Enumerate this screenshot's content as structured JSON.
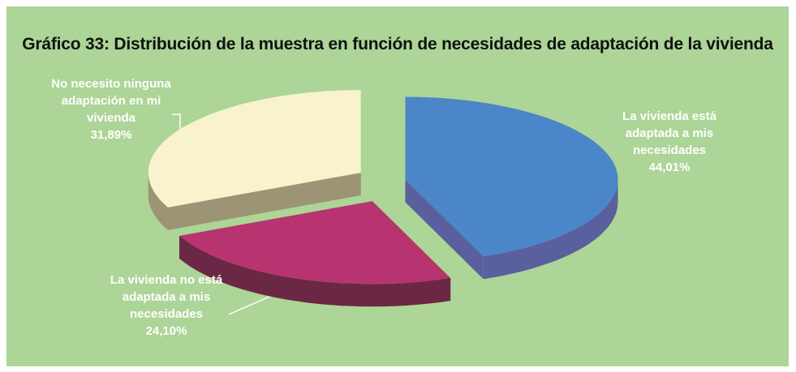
{
  "chart_data": {
    "type": "pie",
    "title": "Gráfico 33: Distribución de la muestra en función de necesidades de adaptación de la vivienda",
    "categories": [
      "La vivienda está adaptada a mis necesidades",
      "La vivienda no está adaptada a mis necesidades",
      "No necesito ninguna adaptación en mi vivienda"
    ],
    "values": [
      44.01,
      24.1,
      31.89
    ],
    "value_labels": [
      "44,01%",
      "24,10%",
      "31,89%"
    ],
    "colors": [
      "#4a86c8",
      "#b83470",
      "#f8f3cc"
    ],
    "side_colors": [
      "#5a5f9e",
      "#6a2844",
      "#9c9474"
    ]
  }
}
